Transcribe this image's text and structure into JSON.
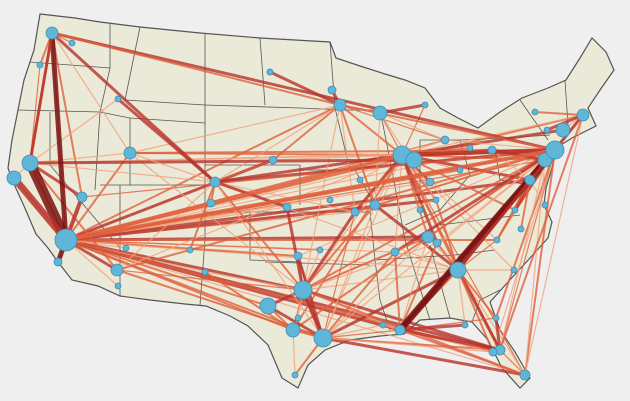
{
  "map": {
    "colors": {
      "background": "#efefef",
      "land": "#ebead8",
      "state_border": "#555555",
      "county_border": "#b8b8a8",
      "node_fill": "#5fb6d8",
      "node_stroke": "#3f8fb3",
      "flow_light": "#f2a07a",
      "flow_mid": "#e0603c",
      "flow_heavy": "#b8322a",
      "flow_max": "#7a1010"
    }
  }
}
